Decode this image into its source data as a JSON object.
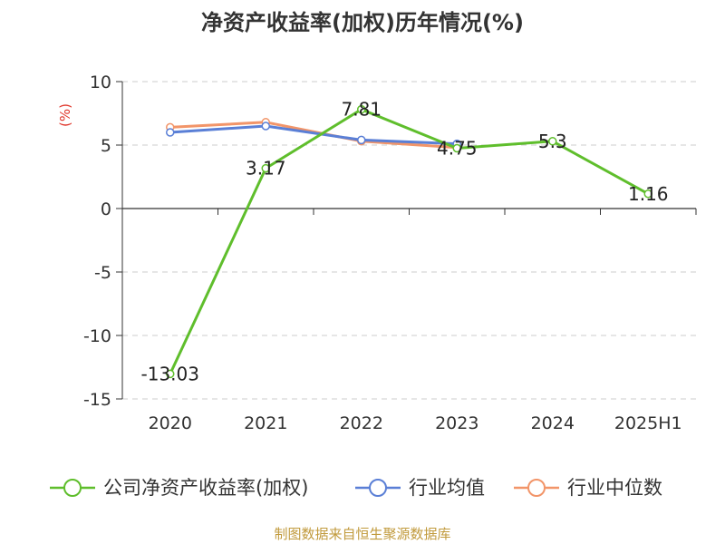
{
  "chart_data": {
    "type": "line",
    "title": "净资产收益率(加权)历年情况(%)",
    "ylabel": "(%)",
    "categories": [
      "2020",
      "2021",
      "2022",
      "2023",
      "2024",
      "2025H1"
    ],
    "ylim": [
      -15,
      10
    ],
    "yticks": [
      10,
      5,
      0,
      -5,
      -10,
      -15
    ],
    "grid": "horizontal-dashed",
    "legend_position": "bottom",
    "series": [
      {
        "name": "公司净资产收益率(加权)",
        "color": "#5fbe2c",
        "values": [
          -13.03,
          3.17,
          7.81,
          4.75,
          5.3,
          1.16
        ],
        "labels": [
          "-13.03",
          "3.17",
          "7.81",
          "4.75",
          "5.3",
          "1.16"
        ]
      },
      {
        "name": "行业均值",
        "color": "#5a7fd6",
        "values": [
          6.0,
          6.5,
          5.4,
          5.1,
          null,
          null
        ]
      },
      {
        "name": "行业中位数",
        "color": "#f29569",
        "values": [
          6.4,
          6.8,
          5.3,
          4.8,
          null,
          null
        ]
      }
    ]
  },
  "source_text": "制图数据来自恒生聚源数据库"
}
